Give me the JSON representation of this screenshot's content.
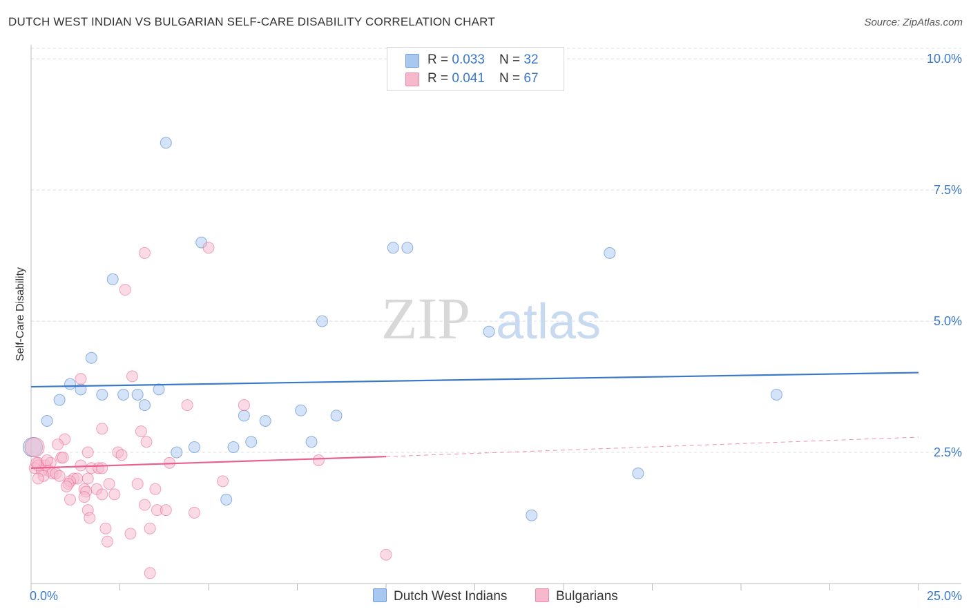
{
  "title": "DUTCH WEST INDIAN VS BULGARIAN SELF-CARE DISABILITY CORRELATION CHART",
  "source": "Source: ZipAtlas.com",
  "watermark": {
    "zip": "ZIP",
    "atlas": "atlas"
  },
  "legend": {
    "rows": [
      {
        "r_label": "R = ",
        "r_value": "0.033",
        "n_label": "N = ",
        "n_value": "32",
        "color": "#a9c8f0"
      },
      {
        "r_label": "R = ",
        "r_value": "0.041",
        "n_label": "N = ",
        "n_value": "67",
        "color": "#f6b8cb"
      }
    ]
  },
  "bottom_legend": {
    "series1": "Dutch West Indians",
    "series2": "Bulgarians"
  },
  "chart_data": {
    "type": "scatter",
    "xlabel": "",
    "ylabel": "Self-Care Disability",
    "xlim": [
      0,
      25
    ],
    "ylim": [
      0,
      10.2
    ],
    "x_tick_labels": [
      "0.0%",
      "25.0%"
    ],
    "y_ticks": [
      2.5,
      5.0,
      7.5,
      10.0
    ],
    "y_tick_labels": [
      "2.5%",
      "5.0%",
      "7.5%",
      "10.0%"
    ],
    "grid": true,
    "legend_position": "top-center",
    "series": [
      {
        "name": "Dutch West Indians",
        "color": "#3a78c8",
        "fill": "#a9c8f0",
        "trend": [
          [
            0,
            3.75
          ],
          [
            25,
            4.02
          ]
        ],
        "points": [
          [
            0.05,
            2.6
          ],
          [
            3.8,
            8.4
          ],
          [
            4.8,
            6.5
          ],
          [
            2.3,
            5.8
          ],
          [
            10.2,
            6.4
          ],
          [
            10.6,
            6.4
          ],
          [
            16.3,
            6.3
          ],
          [
            8.2,
            5.0
          ],
          [
            12.9,
            4.8
          ],
          [
            1.7,
            4.3
          ],
          [
            1.1,
            3.8
          ],
          [
            1.4,
            3.7
          ],
          [
            2.0,
            3.6
          ],
          [
            2.6,
            3.6
          ],
          [
            3.0,
            3.6
          ],
          [
            3.6,
            3.7
          ],
          [
            0.8,
            3.5
          ],
          [
            3.2,
            3.4
          ],
          [
            21.0,
            3.6
          ],
          [
            0.45,
            3.1
          ],
          [
            6.0,
            3.2
          ],
          [
            6.6,
            3.1
          ],
          [
            7.6,
            3.3
          ],
          [
            8.6,
            3.2
          ],
          [
            6.2,
            2.7
          ],
          [
            7.9,
            2.7
          ],
          [
            4.6,
            2.6
          ],
          [
            5.7,
            2.6
          ],
          [
            4.1,
            2.5
          ],
          [
            17.1,
            2.1
          ],
          [
            5.5,
            1.6
          ],
          [
            14.1,
            1.3
          ]
        ]
      },
      {
        "name": "Bulgarians",
        "color": "#e8608d",
        "fill": "#f6b8cb",
        "trend": [
          [
            0,
            2.2
          ],
          [
            10,
            2.42
          ]
        ],
        "trend_dashed": [
          [
            10,
            2.42
          ],
          [
            25,
            2.79
          ]
        ],
        "points": [
          [
            0.1,
            2.6
          ],
          [
            5.0,
            6.4
          ],
          [
            3.2,
            6.3
          ],
          [
            2.65,
            5.6
          ],
          [
            1.4,
            3.9
          ],
          [
            2.85,
            3.95
          ],
          [
            4.4,
            3.4
          ],
          [
            6.0,
            3.4
          ],
          [
            2.0,
            2.95
          ],
          [
            3.1,
            2.9
          ],
          [
            0.95,
            2.75
          ],
          [
            0.75,
            2.65
          ],
          [
            3.25,
            2.7
          ],
          [
            1.6,
            2.5
          ],
          [
            2.45,
            2.5
          ],
          [
            2.55,
            2.45
          ],
          [
            0.85,
            2.4
          ],
          [
            0.9,
            2.4
          ],
          [
            3.9,
            2.3
          ],
          [
            8.1,
            2.35
          ],
          [
            0.2,
            2.3
          ],
          [
            0.4,
            2.25
          ],
          [
            0.55,
            2.3
          ],
          [
            1.4,
            2.25
          ],
          [
            1.7,
            2.2
          ],
          [
            1.9,
            2.2
          ],
          [
            2.0,
            2.2
          ],
          [
            0.1,
            2.2
          ],
          [
            0.3,
            2.15
          ],
          [
            0.5,
            2.15
          ],
          [
            0.6,
            2.1
          ],
          [
            0.7,
            2.1
          ],
          [
            0.35,
            2.05
          ],
          [
            0.8,
            2.05
          ],
          [
            1.2,
            2.0
          ],
          [
            1.3,
            2.0
          ],
          [
            1.6,
            2.0
          ],
          [
            1.1,
            1.95
          ],
          [
            0.2,
            2.0
          ],
          [
            3.0,
            1.9
          ],
          [
            2.2,
            1.9
          ],
          [
            1.05,
            1.9
          ],
          [
            5.4,
            1.95
          ],
          [
            1.0,
            1.85
          ],
          [
            1.5,
            1.8
          ],
          [
            1.85,
            1.8
          ],
          [
            3.5,
            1.8
          ],
          [
            1.55,
            1.75
          ],
          [
            2.0,
            1.7
          ],
          [
            2.35,
            1.7
          ],
          [
            1.5,
            1.65
          ],
          [
            1.1,
            1.6
          ],
          [
            3.2,
            1.5
          ],
          [
            1.6,
            1.4
          ],
          [
            3.55,
            1.4
          ],
          [
            3.8,
            1.4
          ],
          [
            4.6,
            1.35
          ],
          [
            1.65,
            1.25
          ],
          [
            2.1,
            1.05
          ],
          [
            3.35,
            1.05
          ],
          [
            2.8,
            0.95
          ],
          [
            2.15,
            0.8
          ],
          [
            10.0,
            0.55
          ],
          [
            3.35,
            0.2
          ],
          [
            0.2,
            2.25
          ],
          [
            0.15,
            2.3
          ],
          [
            0.45,
            2.35
          ]
        ]
      }
    ]
  }
}
